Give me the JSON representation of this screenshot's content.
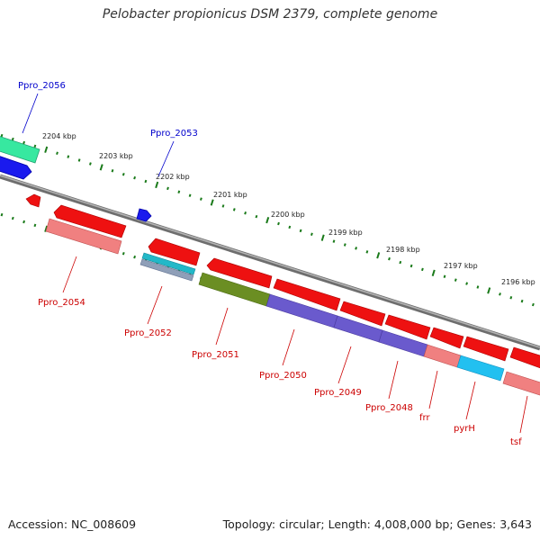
{
  "title": "Pelobacter propionicus DSM 2379, complete genome",
  "footer": {
    "accession": "Accession: NC_008609",
    "summary": "Topology: circular; Length: 4,008,000 bp; Genes: 3,643"
  },
  "colors": {
    "forward_label": "#0000cc",
    "reverse_label": "#cc0000",
    "tick": "#1a7a1a",
    "backbone": "#7f7f7f"
  },
  "scale_ticks": [
    {
      "label": "2204 kbp"
    },
    {
      "label": "2203 kbp"
    },
    {
      "label": "2202 kbp"
    },
    {
      "label": "2201 kbp"
    },
    {
      "label": "2200 kbp"
    },
    {
      "label": "2199 kbp"
    },
    {
      "label": "2198 kbp"
    },
    {
      "label": "2197 kbp"
    },
    {
      "label": "2196 kbp"
    }
  ],
  "forward_labels": [
    {
      "text": "Ppro_2056"
    },
    {
      "text": "Ppro_2053"
    }
  ],
  "reverse_labels": [
    {
      "text": "Ppro_2054"
    },
    {
      "text": "Ppro_2052"
    },
    {
      "text": "Ppro_2051"
    },
    {
      "text": "Ppro_2050"
    },
    {
      "text": "Ppro_2049"
    },
    {
      "text": "Ppro_2048"
    },
    {
      "text": "frr"
    },
    {
      "text": "pyrH"
    },
    {
      "text": "tsf"
    }
  ]
}
